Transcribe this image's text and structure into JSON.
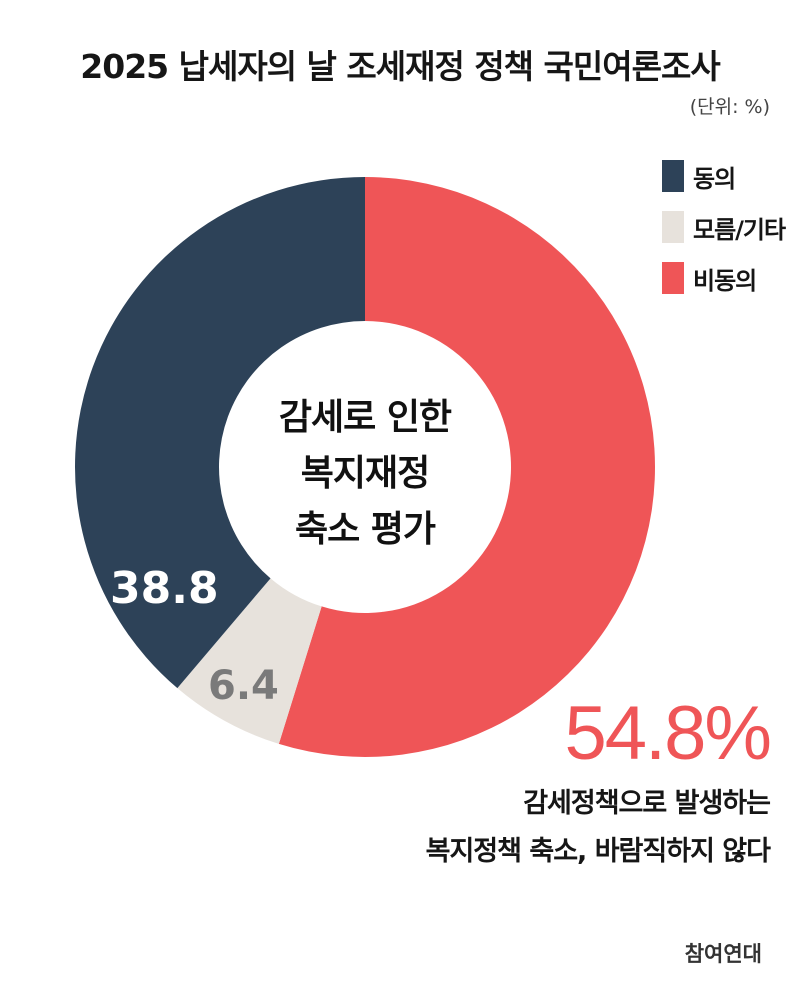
{
  "title": "2025 납세자의 날 조세재정 정책 국민여론조사",
  "unit": "(단위: %)",
  "chart_data": {
    "type": "pie",
    "title": "2025 납세자의 날 조세재정 정책 국민여론조사",
    "center_text": [
      "감세로 인한",
      "복지재정",
      "축소 평가"
    ],
    "legend_position": "top-right",
    "slices": [
      {
        "name": "동의",
        "value": 38.8,
        "label": "38.8",
        "color": "#2d4258"
      },
      {
        "name": "모름/기타",
        "value": 6.4,
        "label": "6.4",
        "color": "#e7e2dc"
      },
      {
        "name": "비동의",
        "value": 54.8,
        "label": "",
        "color": "#ef5557"
      }
    ],
    "draw_order": [
      2,
      1,
      0
    ]
  },
  "highlight": {
    "value": "54.8%",
    "caption": [
      "감세정책으로 발생하는",
      "복지정책 축소, 바람직하지 않다"
    ]
  },
  "source": "참여연대"
}
